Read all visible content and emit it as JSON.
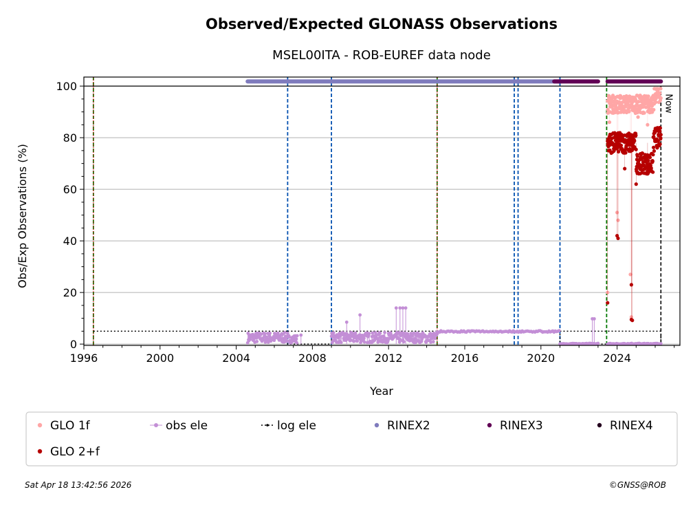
{
  "chart_data": {
    "type": "scatter",
    "title": "Observed/Expected GLONASS Observations",
    "subtitle": "MSEL00ITA - ROB-EUREF data node",
    "xlabel": "Year",
    "ylabel": "Obs/Exp Observations (%)",
    "xlim": [
      1996.0,
      2027.3
    ],
    "ylim": [
      -0.5,
      103.5
    ],
    "xticks": [
      1996,
      2000,
      2004,
      2008,
      2012,
      2016,
      2020,
      2024
    ],
    "yticks": [
      0,
      20,
      40,
      60,
      80,
      100
    ],
    "grid": "y",
    "now_label": "Now",
    "now_x": 2026.3,
    "vlines": {
      "green": [
        1996.5,
        2014.55,
        2023.45
      ],
      "red_dotted": [
        1996.5,
        2014.55
      ],
      "blue": [
        2006.7,
        2009.0,
        2018.6,
        2018.8,
        2021.0
      ],
      "black": [
        2026.3
      ]
    },
    "log_ele": [
      [
        1996.5,
        5
      ],
      [
        2006.7,
        5
      ],
      [
        2006.7,
        0
      ],
      [
        2009.0,
        0
      ],
      [
        2009.0,
        5
      ],
      [
        2014.55,
        5
      ],
      [
        2021.0,
        5
      ],
      [
        2021.0,
        0
      ],
      [
        2026.3,
        0
      ],
      [
        2026.3,
        5
      ]
    ],
    "log_ele_segments": [
      [
        2006.7,
        2009.0,
        5
      ],
      [
        2021.0,
        2026.3,
        5
      ]
    ],
    "rinex_bars": [
      {
        "series": "RINEX2",
        "start": 2004.6,
        "end": 2021.0,
        "y": 101.8
      },
      {
        "series": "RINEX3",
        "start": 2020.7,
        "end": 2023.0,
        "y": 101.8
      },
      {
        "series": "RINEX3",
        "start": 2023.5,
        "end": 2026.3,
        "y": 101.8
      }
    ],
    "obs_ele_segments": [
      {
        "start": 2004.6,
        "end": 2006.7,
        "low": 0.5,
        "high": 4.5
      },
      {
        "start": 2006.7,
        "end": 2007.2,
        "low": 0.5,
        "high": 3.5
      },
      {
        "start": 2009.0,
        "end": 2014.55,
        "low": 0.5,
        "high": 4.5
      },
      {
        "start": 2014.55,
        "end": 2021.0,
        "low": 4.6,
        "high": 5.2
      },
      {
        "start": 2021.0,
        "end": 2023.0,
        "low": 0,
        "high": 0.3
      },
      {
        "start": 2023.5,
        "end": 2026.3,
        "low": 0,
        "high": 0.3
      }
    ],
    "obs_ele_spikes": [
      [
        2007.4,
        3.5
      ],
      [
        2009.8,
        8.5
      ],
      [
        2010.5,
        11.3
      ],
      [
        2012.4,
        14
      ],
      [
        2012.6,
        14
      ],
      [
        2012.75,
        14
      ],
      [
        2012.9,
        14
      ],
      [
        2022.7,
        9.8
      ],
      [
        2022.8,
        9.8
      ]
    ],
    "glo1f": {
      "start": 2023.5,
      "end": 2026.3,
      "base": 93,
      "spread": 3.5,
      "end_level": 97,
      "outliers": [
        [
          2023.5,
          20
        ],
        [
          2023.6,
          86
        ],
        [
          2024.0,
          51
        ],
        [
          2024.05,
          48
        ],
        [
          2024.7,
          27
        ],
        [
          2024.75,
          10.5
        ],
        [
          2025.1,
          88
        ],
        [
          2025.6,
          85
        ]
      ]
    },
    "glo2f": {
      "start": 2023.5,
      "end": 2026.3,
      "base": 78,
      "spread": 4,
      "dip_level": 70,
      "end_level": 80,
      "outliers": [
        [
          2023.5,
          16
        ],
        [
          2024.0,
          42
        ],
        [
          2024.05,
          41
        ],
        [
          2024.75,
          23
        ],
        [
          2024.75,
          9.5
        ],
        [
          2024.8,
          9.2
        ],
        [
          2024.4,
          68
        ],
        [
          2025.0,
          62
        ],
        [
          2025.6,
          66
        ]
      ]
    },
    "legend": [
      {
        "label": "GLO 1f",
        "color": "#ffa6a6",
        "kind": "dot"
      },
      {
        "label": "obs ele",
        "color": "#c38fd6",
        "kind": "line-dot"
      },
      {
        "label": "log ele",
        "color": "#000000",
        "kind": "dotted"
      },
      {
        "label": "RINEX2",
        "color": "#7f7bbd",
        "kind": "dot"
      },
      {
        "label": "RINEX3",
        "color": "#610055",
        "kind": "dot"
      },
      {
        "label": "RINEX4",
        "color": "#24001e",
        "kind": "dot"
      },
      {
        "label": "GLO 2+f",
        "color": "#b60000",
        "kind": "dot"
      }
    ],
    "footer_left": "Sat Apr 18 13:42:56 2026",
    "footer_right": "©GNSS@ROB"
  },
  "colors": {
    "glo1f": "#ffa6a6",
    "glo2f": "#b60000",
    "obs_ele": "#c38fd6",
    "rinex2": "#7f7bbd",
    "rinex3": "#610055",
    "green_line": "#007a00",
    "blue_line": "#0050b0",
    "red_line": "#d00000",
    "grid": "#b0b0b0"
  }
}
